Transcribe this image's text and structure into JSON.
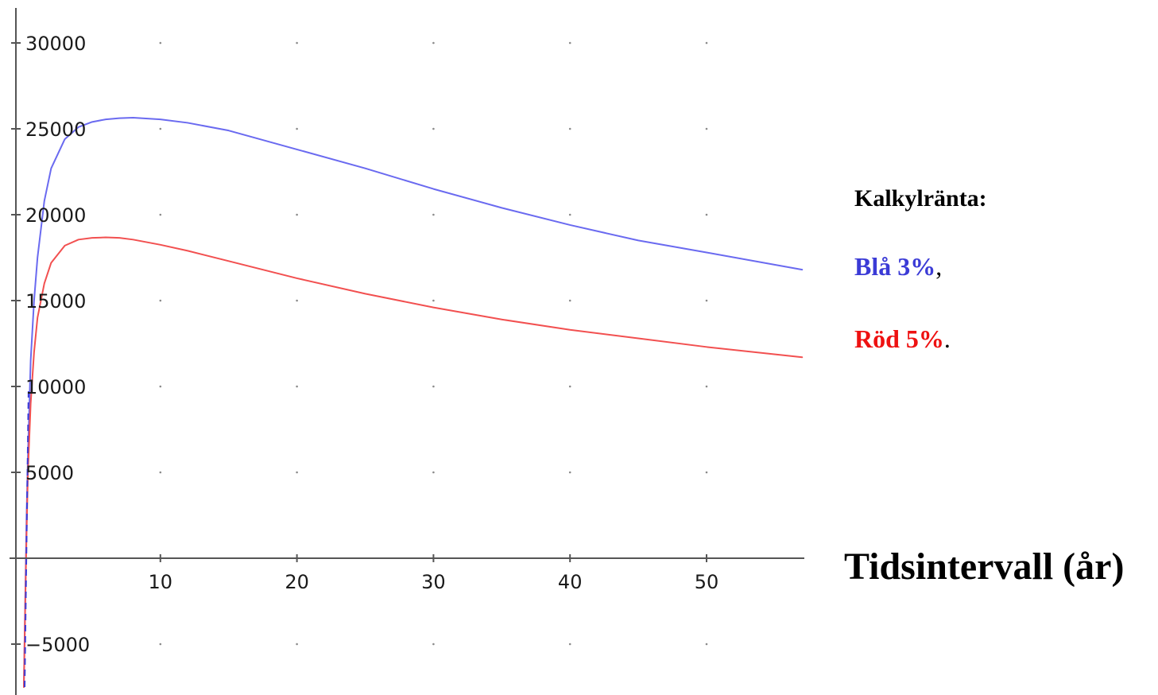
{
  "chart_data": {
    "type": "line",
    "xlabel": "Tidsintervall (år)",
    "ylabel": "",
    "xlim": [
      -1,
      57
    ],
    "ylim": [
      -7800,
      32000
    ],
    "x_ticks": [
      10,
      20,
      30,
      40,
      50
    ],
    "x_tick_labels": [
      "10",
      "20",
      "30",
      "40",
      "50"
    ],
    "y_ticks": [
      -5000,
      5000,
      10000,
      15000,
      20000,
      25000,
      30000
    ],
    "y_tick_labels": [
      "−5000",
      "5000",
      "10000",
      "15000",
      "20000",
      "25000",
      "30000"
    ],
    "grid": "dots",
    "legend": {
      "title": "Kalkylränta:",
      "placement": "right",
      "entries": [
        {
          "label": "Blå 3%",
          "suffix": ",",
          "color": "#e03030"
        },
        {
          "label": "Röd 5%",
          "suffix": ".",
          "color": "#e03030"
        }
      ]
    },
    "series": [
      {
        "color": "#6a6af0",
        "x": [
          0,
          0.1,
          0.2,
          0.3,
          0.5,
          0.75,
          1,
          1.5,
          2,
          3,
          4,
          5,
          6,
          7,
          8,
          10,
          12,
          15,
          20,
          25,
          30,
          35,
          40,
          45,
          50,
          57
        ],
        "y": [
          -7500,
          -2500,
          2500,
          6000,
          11500,
          15000,
          17500,
          20800,
          22700,
          24400,
          25100,
          25400,
          25550,
          25620,
          25650,
          25550,
          25350,
          24900,
          23800,
          22700,
          21500,
          20400,
          19400,
          18500,
          17800,
          16800
        ]
      },
      {
        "color": "#f25050",
        "x": [
          0,
          0.1,
          0.2,
          0.3,
          0.5,
          0.75,
          1,
          1.5,
          2,
          3,
          4,
          5,
          6,
          7,
          8,
          10,
          12,
          15,
          20,
          25,
          30,
          35,
          40,
          45,
          50,
          57
        ],
        "y": [
          -7500,
          -2800,
          1500,
          5000,
          9000,
          12000,
          14000,
          16000,
          17200,
          18200,
          18550,
          18650,
          18680,
          18650,
          18550,
          18250,
          17900,
          17300,
          16300,
          15400,
          14600,
          13900,
          13300,
          12800,
          12300,
          11700
        ]
      }
    ]
  }
}
